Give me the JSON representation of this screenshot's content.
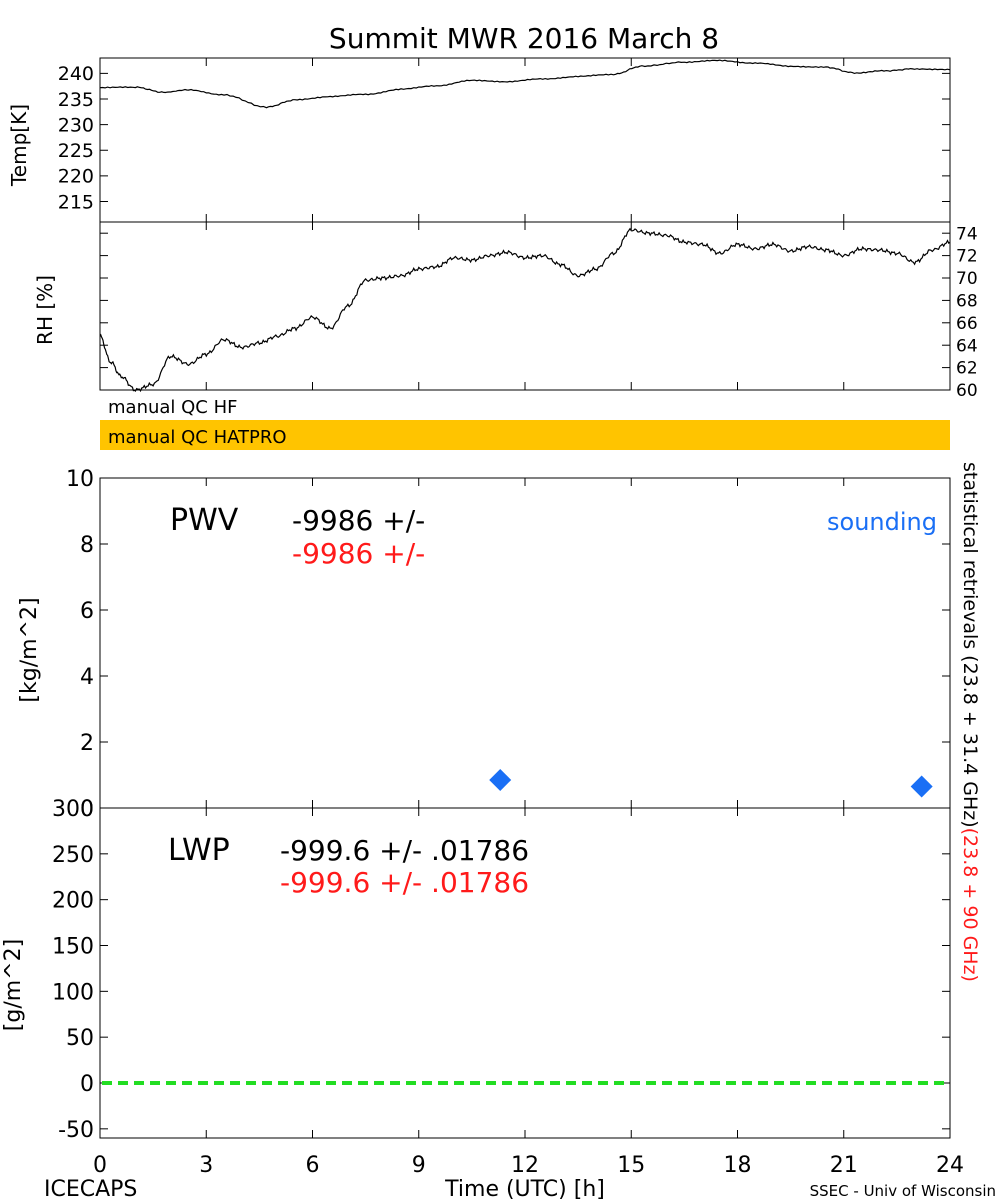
{
  "title": "Summit MWR 2016 March  8",
  "footer": {
    "left": "ICECAPS",
    "center": "Time (UTC) [h]",
    "right": "SSEC - Univ of Wisconsin"
  },
  "x_axis": {
    "ticks": [
      "0",
      "3",
      "6",
      "9",
      "12",
      "15",
      "18",
      "21",
      "24"
    ],
    "xlim": [
      0,
      24
    ]
  },
  "qc_bars": {
    "hf_label": "manual QC HF",
    "hatpro_label": "manual QC HATPRO",
    "hatpro_color": "#ffc400"
  },
  "right_side_label": {
    "black_part": "statistical retrievals (23.8 + 31.4 GHz)",
    "red_part": "(23.8 + 90 GHz)"
  },
  "colors": {
    "red": "#ff1a1a",
    "blue": "#1a6ff5",
    "green": "#22dd22"
  },
  "chart_data": [
    {
      "type": "line",
      "name": "temp_panel",
      "ylabel": "Temp[K]",
      "ylim": [
        211,
        243
      ],
      "yticks": [
        "215",
        "220",
        "225",
        "230",
        "235",
        "240"
      ],
      "x": [
        0,
        1,
        1.8,
        2.5,
        3.5,
        4.7,
        5.5,
        6.5,
        7.5,
        8.5,
        9.5,
        10.5,
        11.5,
        12.5,
        13.5,
        14.5,
        15.3,
        16.5,
        17.5,
        18.5,
        19.5,
        20.5,
        21.3,
        22.2,
        23.0,
        24
      ],
      "values": [
        237.2,
        237.3,
        236.3,
        236.8,
        235.8,
        233.4,
        234.8,
        235.5,
        235.9,
        236.9,
        237.6,
        238.6,
        238.4,
        238.9,
        239.4,
        239.8,
        241.4,
        242.2,
        242.5,
        242.0,
        241.4,
        241.2,
        240.1,
        240.5,
        240.9,
        240.7
      ]
    },
    {
      "type": "line",
      "name": "rh_panel",
      "ylabel": "RH [%]",
      "ylim": [
        60,
        75
      ],
      "yticks": [
        "60",
        "62",
        "64",
        "66",
        "68",
        "70",
        "72",
        "74"
      ],
      "x": [
        0,
        0.3,
        0.6,
        1.0,
        1.5,
        2.0,
        2.5,
        3.0,
        3.5,
        4.0,
        4.5,
        5.0,
        5.5,
        6.0,
        6.5,
        7.0,
        7.5,
        8.0,
        8.5,
        9.0,
        9.5,
        10.0,
        10.5,
        11.0,
        11.5,
        12.0,
        12.5,
        13.0,
        13.5,
        14.0,
        14.5,
        15.0,
        15.5,
        16.0,
        16.5,
        17.0,
        17.5,
        18.0,
        18.5,
        19.0,
        19.5,
        20.0,
        20.5,
        21.0,
        21.5,
        22.0,
        22.5,
        23.0,
        23.5,
        24.0
      ],
      "values": [
        64.8,
        62.5,
        61.2,
        60.0,
        60.5,
        63.0,
        62.3,
        63.2,
        64.5,
        63.8,
        64.2,
        64.8,
        65.5,
        66.5,
        65.5,
        67.5,
        69.8,
        70.0,
        70.2,
        70.8,
        71.0,
        71.8,
        71.6,
        72.0,
        72.3,
        71.8,
        72.0,
        71.2,
        70.2,
        70.8,
        72.2,
        74.3,
        74.0,
        73.8,
        73.2,
        73.0,
        72.2,
        73.0,
        72.6,
        73.0,
        72.4,
        72.8,
        72.5,
        72.0,
        72.6,
        72.5,
        72.2,
        71.4,
        72.5,
        73.2
      ]
    },
    {
      "type": "scatter",
      "name": "pwv_panel",
      "ylabel": "[kg/m^2]",
      "ylim": [
        0,
        10
      ],
      "yticks": [
        "0",
        "2",
        "4",
        "6",
        "8",
        "10"
      ],
      "label": "PWV",
      "readout_black": "-9986 +/-",
      "readout_red": "-9986 +/-",
      "legend": "sounding",
      "series": [
        {
          "name": "sounding",
          "x": [
            11.3,
            23.2
          ],
          "values": [
            0.85,
            0.65
          ]
        }
      ]
    },
    {
      "type": "line",
      "name": "lwp_panel",
      "ylabel": "[g/m^2]",
      "ylim": [
        -60,
        300
      ],
      "yticks": [
        "-50",
        "0",
        "50",
        "100",
        "150",
        "200",
        "250",
        "300"
      ],
      "label": "LWP",
      "readout_black": "-999.6 +/- .01786",
      "readout_red": "-999.6 +/- .01786",
      "reference_line": 0
    }
  ]
}
